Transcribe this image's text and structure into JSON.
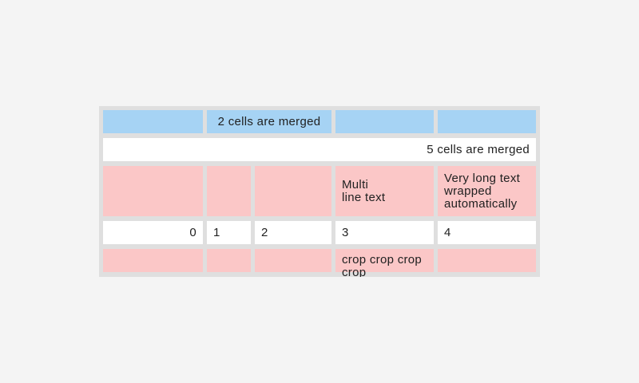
{
  "screen": {
    "background": "#f4f4f4"
  },
  "table": {
    "widget": "table",
    "colors": {
      "header_blue": "#a6d3f4",
      "highlight_pink": "#fbc7c7",
      "cell_white": "#ffffff",
      "frame_gray": "#dfdfdf",
      "text": "#212121"
    },
    "rows": [
      {
        "cells": [
          {
            "text": "",
            "bg": "blue"
          },
          {
            "text": "2 cells are merged",
            "bg": "blue",
            "colspan": 2,
            "align": "center"
          },
          {
            "text": "",
            "bg": "blue"
          },
          {
            "text": "",
            "bg": "blue"
          }
        ]
      },
      {
        "cells": [
          {
            "text": "5 cells are merged",
            "bg": "white",
            "colspan": 5,
            "align": "right"
          }
        ]
      },
      {
        "cells": [
          {
            "text": "",
            "bg": "pink"
          },
          {
            "text": "",
            "bg": "pink"
          },
          {
            "text": "",
            "bg": "pink"
          },
          {
            "text": "Multi\nline text",
            "bg": "pink"
          },
          {
            "text": "Very long text wrapped automatically",
            "bg": "pink"
          }
        ]
      },
      {
        "cells": [
          {
            "text": "0",
            "bg": "white",
            "align": "right"
          },
          {
            "text": "1",
            "bg": "white"
          },
          {
            "text": "2",
            "bg": "white"
          },
          {
            "text": "3",
            "bg": "white"
          },
          {
            "text": "4",
            "bg": "white"
          }
        ]
      },
      {
        "cells": [
          {
            "text": "",
            "bg": "pink"
          },
          {
            "text": "",
            "bg": "pink"
          },
          {
            "text": "",
            "bg": "pink"
          },
          {
            "text": "crop crop crop crop",
            "bg": "pink",
            "cropped": true
          },
          {
            "text": "",
            "bg": "pink"
          }
        ]
      }
    ]
  }
}
